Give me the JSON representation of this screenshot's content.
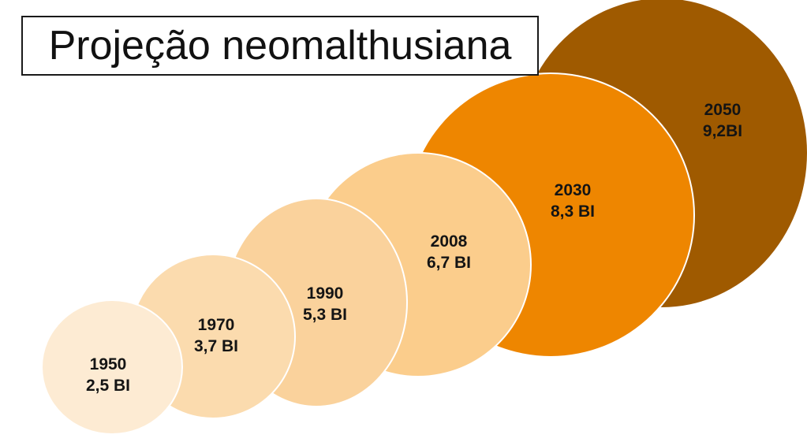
{
  "title": "Projeção neomalthusiana",
  "items": [
    {
      "year": "1950",
      "population": "2,5 BI",
      "color": "#FDEBD3"
    },
    {
      "year": "1970",
      "population": "3,7 BI",
      "color": "#FBDBAE"
    },
    {
      "year": "1990",
      "population": "5,3 BI",
      "color": "#FAD29C"
    },
    {
      "year": "2008",
      "population": "6,7 BI",
      "color": "#FBCD8C"
    },
    {
      "year": "2030",
      "population": "8,3 BI",
      "color": "#EE8600"
    },
    {
      "year": "2050",
      "population": "9,2BI",
      "color": "#9F5A00"
    }
  ]
}
